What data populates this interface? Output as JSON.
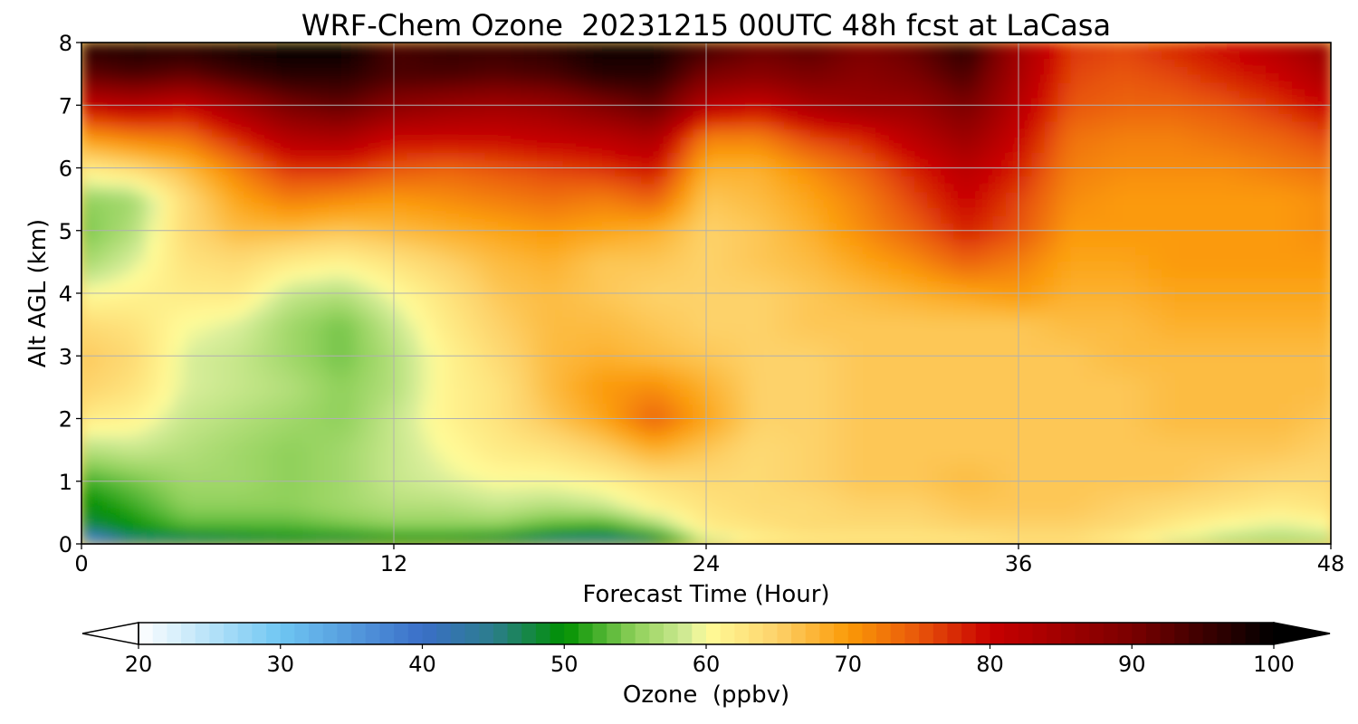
{
  "chart_data": {
    "type": "heatmap",
    "title": "WRF-Chem Ozone  20231215 00UTC 48h fcst at LaCasa",
    "xlabel": "Forecast Time (Hour)",
    "ylabel": "Alt AGL (km)",
    "xlim": [
      0,
      48
    ],
    "ylim": [
      0,
      8
    ],
    "xticks": [
      0,
      12,
      24,
      36,
      48
    ],
    "yticks": [
      0,
      1,
      2,
      3,
      4,
      5,
      6,
      7,
      8
    ],
    "grid": true,
    "colorbar": {
      "label": "Ozone  (ppbv)",
      "min": 20,
      "max": 100,
      "step": 1,
      "ticks": [
        20,
        30,
        40,
        50,
        60,
        70,
        80,
        90,
        100
      ],
      "extend": "both",
      "colors": [
        {
          "v": 20,
          "c": "#ffffff"
        },
        {
          "v": 30,
          "c": "#6fc6f2"
        },
        {
          "v": 40,
          "c": "#3a6fc8"
        },
        {
          "v": 45,
          "c": "#2b7d8c"
        },
        {
          "v": 50,
          "c": "#009100"
        },
        {
          "v": 55,
          "c": "#8fd05a"
        },
        {
          "v": 59,
          "c": "#d9ee9b"
        },
        {
          "v": 60,
          "c": "#fffc99"
        },
        {
          "v": 65,
          "c": "#fdd26a"
        },
        {
          "v": 70,
          "c": "#fb9a07"
        },
        {
          "v": 75,
          "c": "#e8560a"
        },
        {
          "v": 80,
          "c": "#c80000"
        },
        {
          "v": 90,
          "c": "#7a0000"
        },
        {
          "v": 100,
          "c": "#000000"
        }
      ]
    },
    "grid_x": [
      0,
      2,
      4,
      6,
      8,
      10,
      12,
      14,
      16,
      18,
      20,
      22,
      24,
      26,
      28,
      30,
      32,
      34,
      36,
      38,
      40,
      42,
      44,
      46,
      48
    ],
    "grid_y": [
      0,
      0.1,
      0.3,
      0.6,
      1,
      1.5,
      2,
      2.5,
      3,
      3.5,
      4,
      4.5,
      5,
      5.5,
      6,
      6.5,
      7,
      7.5,
      8
    ],
    "values": [
      [
        25,
        40,
        43,
        44,
        45,
        44,
        47,
        46,
        44,
        41,
        40,
        43,
        55,
        59,
        60,
        61,
        61,
        61,
        62,
        62,
        60,
        57,
        55,
        54,
        55
      ],
      [
        40,
        48,
        48,
        49,
        50,
        50,
        51,
        51,
        50,
        48,
        47,
        49,
        60,
        62,
        63,
        63,
        63,
        63,
        64,
        64,
        62,
        60,
        58,
        57,
        58
      ],
      [
        47,
        50,
        53,
        53,
        53,
        54,
        55,
        55,
        55,
        53,
        52,
        56,
        62,
        63,
        64,
        64,
        64,
        65,
        65,
        65,
        64,
        62,
        60,
        59,
        60
      ],
      [
        49,
        52,
        55,
        55,
        55,
        56,
        57,
        57,
        58,
        57,
        58,
        61,
        63,
        64,
        64,
        65,
        65,
        66,
        66,
        66,
        65,
        64,
        63,
        62,
        63
      ],
      [
        52,
        54,
        56,
        56,
        55,
        56,
        58,
        59,
        60,
        60,
        61,
        63,
        64,
        64,
        65,
        66,
        66,
        67,
        66,
        66,
        66,
        66,
        65,
        64,
        64
      ],
      [
        57,
        58,
        57,
        56,
        55,
        56,
        58,
        60,
        62,
        63,
        65,
        68,
        66,
        64,
        65,
        66,
        66,
        66,
        66,
        66,
        66,
        66,
        66,
        66,
        65
      ],
      [
        62,
        61,
        58,
        57,
        56,
        55,
        58,
        61,
        63,
        66,
        69,
        74,
        69,
        65,
        65,
        66,
        66,
        66,
        66,
        66,
        66,
        67,
        67,
        67,
        66
      ],
      [
        65,
        63,
        59,
        58,
        57,
        55,
        57,
        61,
        63,
        67,
        70,
        71,
        68,
        65,
        65,
        66,
        66,
        66,
        66,
        66,
        66,
        67,
        67,
        67,
        67
      ],
      [
        66,
        64,
        59,
        58,
        56,
        54,
        57,
        61,
        64,
        67,
        68,
        67,
        66,
        65,
        65,
        66,
        66,
        66,
        66,
        66,
        67,
        67,
        67,
        67,
        67
      ],
      [
        64,
        63,
        60,
        59,
        56,
        54,
        58,
        62,
        65,
        67,
        67,
        66,
        65,
        65,
        66,
        66,
        66,
        66,
        66,
        67,
        67,
        68,
        68,
        68,
        68
      ],
      [
        60,
        61,
        62,
        62,
        58,
        57,
        60,
        63,
        66,
        67,
        66,
        65,
        65,
        65,
        66,
        67,
        68,
        69,
        70,
        68,
        68,
        69,
        69,
        69,
        69
      ],
      [
        56,
        59,
        63,
        64,
        62,
        61,
        63,
        65,
        67,
        68,
        66,
        66,
        65,
        66,
        67,
        69,
        71,
        74,
        72,
        69,
        69,
        70,
        70,
        70,
        70
      ],
      [
        54,
        57,
        64,
        67,
        67,
        66,
        67,
        68,
        69,
        70,
        69,
        68,
        65,
        66,
        68,
        71,
        74,
        78,
        75,
        70,
        70,
        70,
        70,
        70,
        71
      ],
      [
        55,
        56,
        64,
        69,
        72,
        71,
        70,
        71,
        72,
        73,
        72,
        74,
        66,
        67,
        69,
        72,
        76,
        80,
        76,
        71,
        70,
        70,
        70,
        70,
        71
      ],
      [
        62,
        64,
        67,
        72,
        77,
        77,
        75,
        74,
        75,
        76,
        77,
        79,
        68,
        68,
        71,
        74,
        78,
        82,
        78,
        72,
        71,
        71,
        71,
        72,
        73
      ],
      [
        70,
        72,
        73,
        78,
        83,
        84,
        80,
        80,
        80,
        81,
        82,
        84,
        72,
        72,
        76,
        78,
        82,
        86,
        80,
        73,
        72,
        72,
        73,
        74,
        76
      ],
      [
        80,
        82,
        80,
        85,
        90,
        92,
        88,
        86,
        85,
        86,
        89,
        92,
        82,
        80,
        84,
        86,
        86,
        90,
        82,
        75,
        74,
        74,
        75,
        77,
        80
      ],
      [
        92,
        94,
        92,
        95,
        97,
        97,
        94,
        94,
        93,
        94,
        97,
        97,
        90,
        88,
        90,
        88,
        90,
        94,
        84,
        76,
        75,
        76,
        78,
        80,
        84
      ],
      [
        97,
        98,
        98,
        99,
        100,
        100,
        94,
        96,
        96,
        97,
        99,
        99,
        95,
        92,
        93,
        90,
        92,
        97,
        85,
        77,
        76,
        78,
        80,
        83,
        87
      ]
    ]
  }
}
